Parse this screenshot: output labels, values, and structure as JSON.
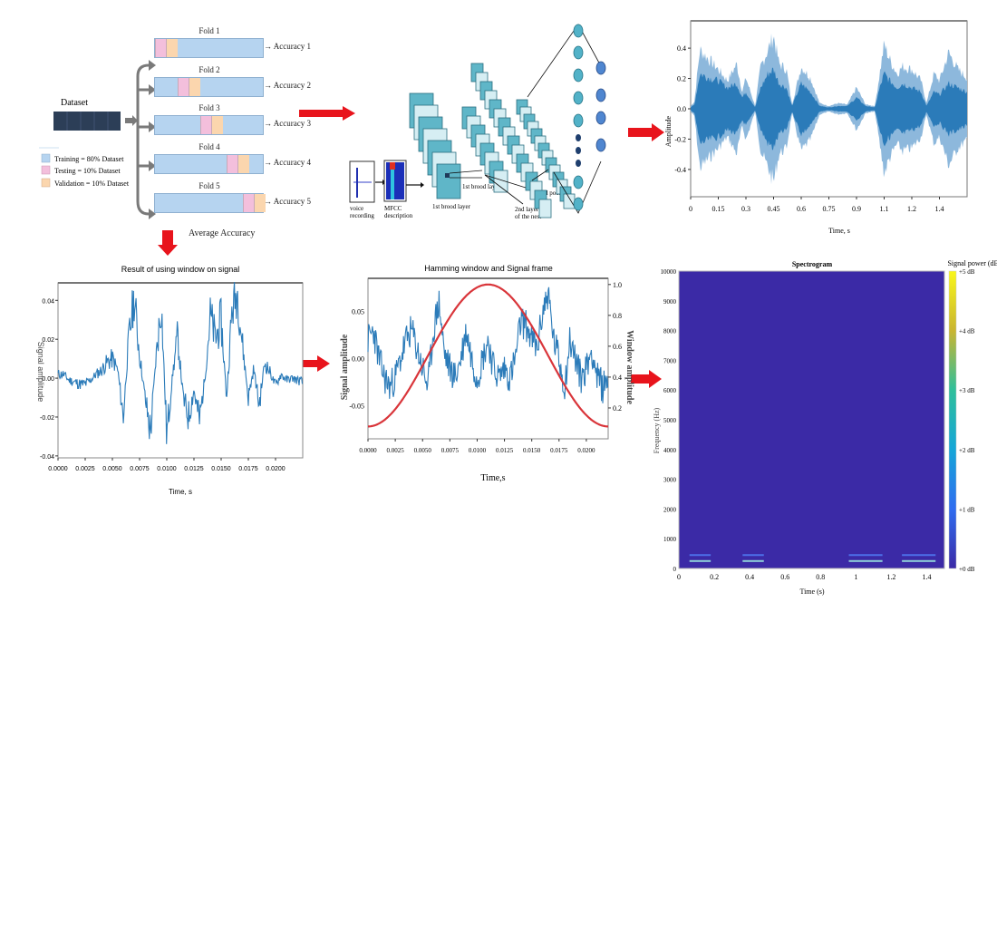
{
  "kfold": {
    "dataset_label": "Dataset",
    "legend": [
      {
        "label": "Training = 80% Dataset",
        "color": "#b6d4f0"
      },
      {
        "label": "Testing = 10% Dataset",
        "color": "#f3bfdc"
      },
      {
        "label": "Validation = 10% Dataset",
        "color": "#fbd6ae"
      }
    ],
    "folds": [
      {
        "title": "Fold 1",
        "result": "Accuracy 1",
        "test_pos": 0
      },
      {
        "title": "Fold 2",
        "result": "Accuracy 2",
        "test_pos": 1
      },
      {
        "title": "Fold 3",
        "result": "Accuracy 3",
        "test_pos": 2
      },
      {
        "title": "Fold 4",
        "result": "Accuracy 4",
        "test_pos": 3
      },
      {
        "title": "Fold 5",
        "result": "Accuracy 5",
        "test_pos": 4
      }
    ],
    "average_label": "Average Accuracy"
  },
  "cnn": {
    "voice_label_1": "voice",
    "voice_label_2": "recording",
    "mfcc_label_1": "MFCC",
    "mfcc_label_2": "description",
    "layer1_label": "1st brood layer",
    "layer1b_label": "1st brood layer",
    "layer2_label_1": "2nd layer",
    "layer2_label_2": "of the nest",
    "pool_label_1": "2nd pool",
    "pool_label_2": "layer"
  },
  "colors": {
    "arrow_red": "#e8141c",
    "signal_blue": "#2b7bb9",
    "signal_light": "#8db8dc",
    "window_red": "#d9353a",
    "spec_bg": "#3b2aa6"
  },
  "chart_data": [
    {
      "type": "area",
      "title": "",
      "xlabel": "Time, s",
      "ylabel": "Amplitude",
      "xticks": [
        "0",
        "0.15",
        "0.3",
        "0.45",
        "0.6",
        "0.75",
        "0.9",
        "1.1",
        "1.2",
        "1.4"
      ],
      "yticks": [
        "0.4",
        "0.2",
        "0.0",
        "-0.2",
        "-0.4"
      ],
      "xlim": [
        0,
        1.5
      ],
      "ylim": [
        -0.58,
        0.58
      ],
      "envelope": {
        "x": [
          0,
          0.02,
          0.05,
          0.1,
          0.15,
          0.2,
          0.25,
          0.28,
          0.3,
          0.35,
          0.38,
          0.42,
          0.45,
          0.48,
          0.52,
          0.55,
          0.6,
          0.65,
          0.7,
          0.75,
          0.8,
          0.85,
          0.9,
          0.95,
          1.0,
          1.02,
          1.05,
          1.08,
          1.12,
          1.15,
          1.2,
          1.25,
          1.28,
          1.32,
          1.35,
          1.4,
          1.45,
          1.5
        ],
        "outer": [
          0.02,
          0.05,
          0.42,
          0.35,
          0.28,
          0.2,
          0.32,
          0.12,
          0.22,
          0.02,
          0.3,
          0.42,
          0.52,
          0.32,
          0.28,
          0.03,
          0.3,
          0.22,
          0.04,
          0.02,
          0.04,
          0.03,
          0.15,
          0.03,
          0.02,
          0.2,
          0.46,
          0.35,
          0.25,
          0.3,
          0.28,
          0.2,
          0.04,
          0.25,
          0.2,
          0.4,
          0.28,
          0.22
        ],
        "inner": [
          0.01,
          0.03,
          0.25,
          0.22,
          0.2,
          0.15,
          0.18,
          0.08,
          0.12,
          0.01,
          0.15,
          0.25,
          0.28,
          0.18,
          0.15,
          0.02,
          0.18,
          0.12,
          0.02,
          0.01,
          0.02,
          0.02,
          0.08,
          0.02,
          0.01,
          0.12,
          0.25,
          0.2,
          0.15,
          0.18,
          0.15,
          0.12,
          0.02,
          0.12,
          0.1,
          0.18,
          0.15,
          0.12
        ]
      }
    },
    {
      "type": "line",
      "title": "Result of using window on signal",
      "xlabel": "Time, s",
      "ylabel": "Signal amplitude",
      "xticks": [
        "0.0000",
        "0.0025",
        "0.0050",
        "0.0075",
        "0.0100",
        "0.0125",
        "0.0150",
        "0.0175",
        "0.0200"
      ],
      "yticks": [
        "0.04",
        "0.02",
        "0.00",
        "-0.02",
        "-0.04"
      ],
      "xlim": [
        0,
        0.0225
      ],
      "ylim": [
        -0.041,
        0.049
      ],
      "series": [
        {
          "name": "windowed signal",
          "x": [
            0,
            0.0005,
            0.001,
            0.0015,
            0.002,
            0.0025,
            0.003,
            0.0035,
            0.004,
            0.0045,
            0.005,
            0.0055,
            0.006,
            0.0065,
            0.007,
            0.0075,
            0.008,
            0.0085,
            0.009,
            0.0095,
            0.01,
            0.0105,
            0.011,
            0.0115,
            0.012,
            0.0125,
            0.013,
            0.0135,
            0.014,
            0.0145,
            0.015,
            0.0155,
            0.016,
            0.0165,
            0.017,
            0.0175,
            0.018,
            0.0185,
            0.019,
            0.0195,
            0.02,
            0.0205,
            0.021,
            0.0215,
            0.022,
            0.0225
          ],
          "values": [
            0.002,
            0.002,
            -0.001,
            -0.002,
            -0.003,
            -0.003,
            -0.001,
            0.002,
            0.004,
            0.008,
            0.01,
            0.004,
            -0.02,
            0.02,
            0.041,
            0.012,
            -0.01,
            -0.028,
            0.01,
            0.038,
            -0.03,
            0.0,
            0.022,
            -0.01,
            -0.02,
            -0.006,
            -0.022,
            0.0,
            0.032,
            0.02,
            0.03,
            -0.01,
            0.035,
            0.044,
            0.015,
            -0.01,
            0.005,
            -0.014,
            0.008,
            0.003,
            -0.004,
            0.002,
            -0.001,
            0.0,
            -0.001,
            -0.002
          ]
        }
      ]
    },
    {
      "type": "line",
      "title": "Hamming window and Signal frame",
      "xlabel": "Time,s",
      "ylabel": "Signal amplitude",
      "ylabel_right": "Window amplitude",
      "xticks": [
        "0.0000",
        "0.0025",
        "0.0050",
        "0.0075",
        "0.0100",
        "0.0125",
        "0.0150",
        "0.0175",
        "0.0200"
      ],
      "yticks": [
        "0.05",
        "0.00",
        "-0.05"
      ],
      "yticks_right": [
        "1.0",
        "0.8",
        "0.6",
        "0.4",
        "0.2"
      ],
      "xlim": [
        0,
        0.022
      ],
      "ylim": [
        -0.085,
        0.085
      ],
      "ylim_right": [
        0.0,
        1.04
      ],
      "series": [
        {
          "name": "signal frame",
          "axis": "left",
          "x": [
            0,
            0.0005,
            0.001,
            0.0015,
            0.002,
            0.0025,
            0.003,
            0.0035,
            0.004,
            0.0045,
            0.005,
            0.0055,
            0.006,
            0.0065,
            0.007,
            0.0075,
            0.008,
            0.0085,
            0.009,
            0.0095,
            0.01,
            0.0105,
            0.011,
            0.0115,
            0.012,
            0.0125,
            0.013,
            0.0135,
            0.014,
            0.0145,
            0.015,
            0.0155,
            0.016,
            0.0165,
            0.017,
            0.0175,
            0.018,
            0.0185,
            0.019,
            0.0195,
            0.02,
            0.0205,
            0.021,
            0.0215,
            0.022
          ],
          "values": [
            0.02,
            0.03,
            0.0,
            -0.02,
            -0.03,
            -0.02,
            0.0,
            0.02,
            0.03,
            0.01,
            -0.01,
            -0.03,
            0.03,
            0.06,
            0.005,
            -0.01,
            -0.02,
            0.0,
            0.03,
            0.0,
            -0.02,
            0.0,
            0.02,
            -0.01,
            -0.02,
            -0.01,
            -0.02,
            0.0,
            0.04,
            0.035,
            0.02,
            0.01,
            0.05,
            0.07,
            0.02,
            0.0,
            -0.03,
            0.02,
            0.0,
            -0.02,
            -0.01,
            0.01,
            -0.02,
            -0.03,
            -0.02
          ]
        },
        {
          "name": "hamming window",
          "axis": "right",
          "x": [
            0,
            0.0022,
            0.0044,
            0.0066,
            0.0088,
            0.011,
            0.0132,
            0.0154,
            0.0176,
            0.0198,
            0.022
          ],
          "values": [
            0.08,
            0.17,
            0.4,
            0.68,
            0.91,
            1.0,
            0.91,
            0.68,
            0.4,
            0.17,
            0.08
          ]
        }
      ]
    },
    {
      "type": "heatmap",
      "title": "Spectrogram",
      "xlabel": "Time (s)",
      "ylabel": "Frequency (Hz)",
      "colorbar_label": "Signal power (dB)",
      "xticks": [
        "0",
        "0.2",
        "0.4",
        "0.6",
        "0.8",
        "1",
        "1.2",
        "1.4"
      ],
      "yticks": [
        "0",
        "1000",
        "2000",
        "3000",
        "4000",
        "5000",
        "6000",
        "7000",
        "8000",
        "9000",
        "10000"
      ],
      "colorbar_ticks": [
        "+5 dB",
        "+4 dB",
        "+3 dB",
        "+2 dB",
        "+1 dB",
        "+0 dB"
      ],
      "xlim": [
        0,
        1.5
      ],
      "ylim": [
        0,
        10000
      ],
      "background_value_db": 0,
      "bands": [
        {
          "t_start": 0.06,
          "t_end": 0.18,
          "freq_hz": 250,
          "level_db": 2.2
        },
        {
          "t_start": 0.06,
          "t_end": 0.18,
          "freq_hz": 450,
          "level_db": 1.0
        },
        {
          "t_start": 0.36,
          "t_end": 0.48,
          "freq_hz": 250,
          "level_db": 2.2
        },
        {
          "t_start": 0.36,
          "t_end": 0.48,
          "freq_hz": 450,
          "level_db": 1.0
        },
        {
          "t_start": 0.96,
          "t_end": 1.15,
          "freq_hz": 250,
          "level_db": 2.2
        },
        {
          "t_start": 0.96,
          "t_end": 1.15,
          "freq_hz": 450,
          "level_db": 1.0
        },
        {
          "t_start": 1.26,
          "t_end": 1.45,
          "freq_hz": 250,
          "level_db": 2.2
        },
        {
          "t_start": 1.26,
          "t_end": 1.45,
          "freq_hz": 450,
          "level_db": 1.0
        }
      ]
    }
  ]
}
